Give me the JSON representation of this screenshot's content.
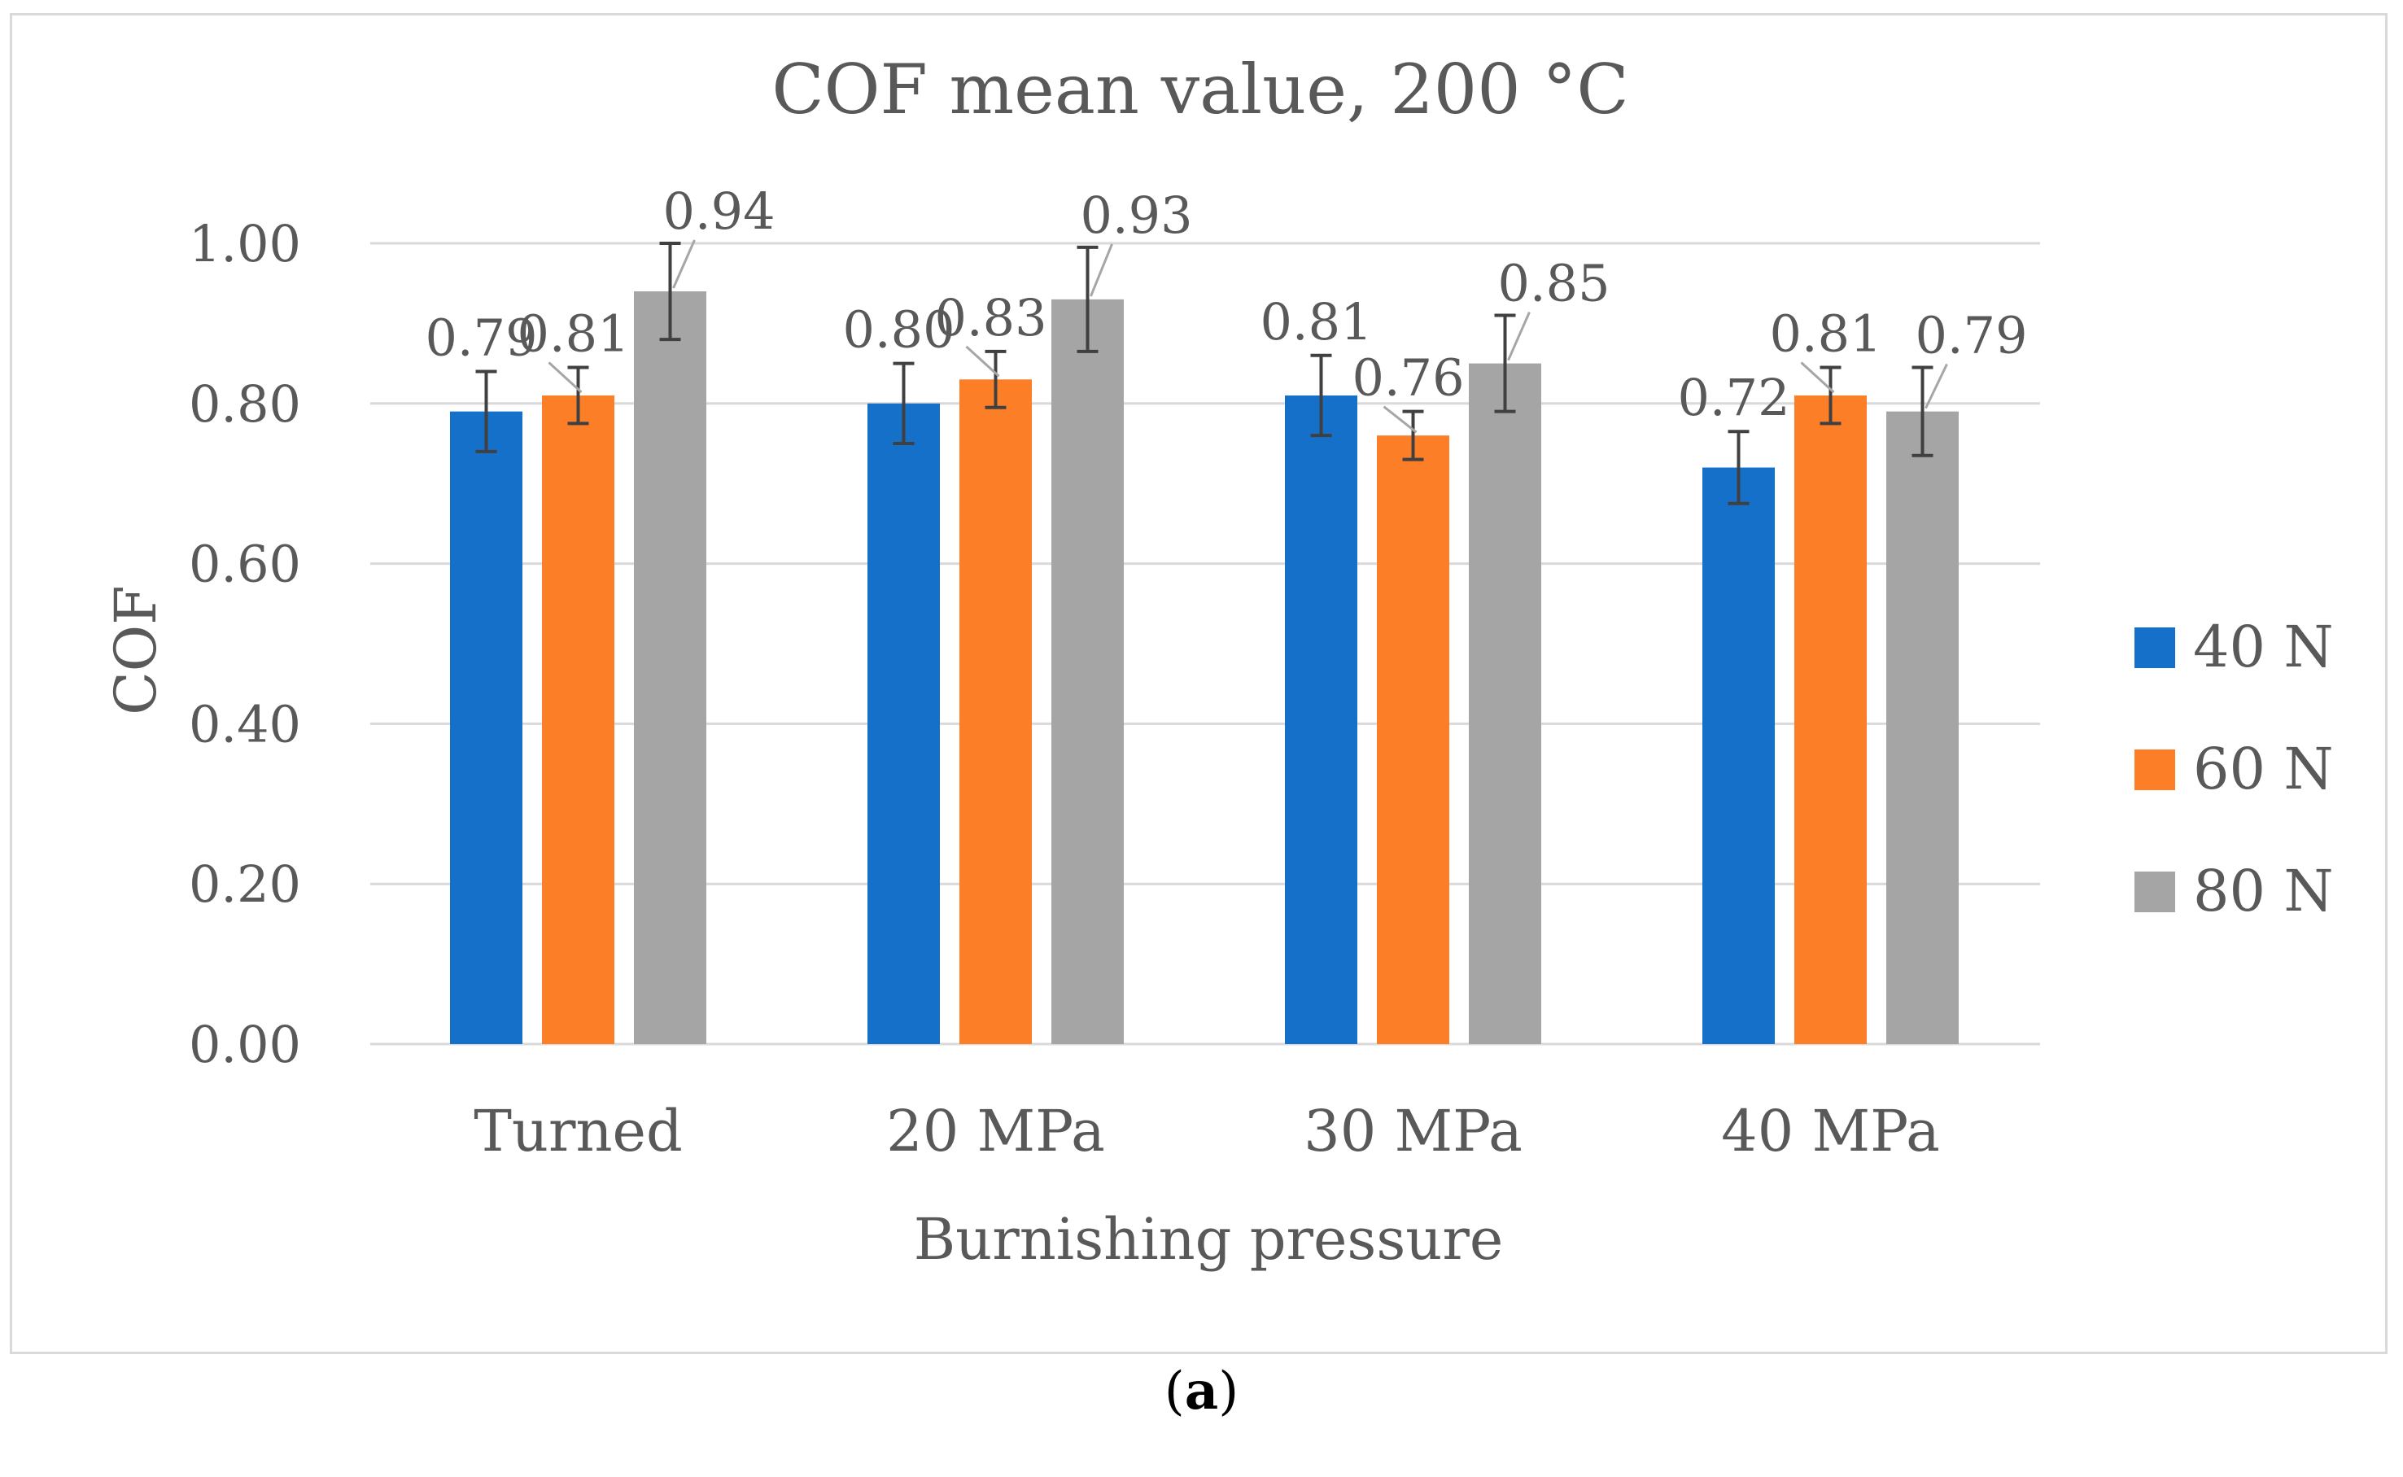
{
  "chart_data": {
    "type": "bar",
    "title": "COF mean value, 200 °C",
    "xlabel": "Burnishing pressure",
    "ylabel": "COF",
    "ylim": [
      0,
      1.0
    ],
    "yticks": [
      "0.00",
      "0.20",
      "0.40",
      "0.60",
      "0.80",
      "1.00"
    ],
    "grid": true,
    "legend_position": "right",
    "categories": [
      "Turned",
      "20 MPa",
      "30 MPa",
      "40 MPa"
    ],
    "series": [
      {
        "name": "40 N",
        "color": "#1570c9",
        "values": [
          0.79,
          0.8,
          0.81,
          0.72
        ],
        "errors": [
          0.05,
          0.05,
          0.05,
          0.045
        ],
        "labels": [
          "0.79",
          "0.80",
          "0.81",
          "0.72"
        ]
      },
      {
        "name": "60 N",
        "color": "#fc7f28",
        "values": [
          0.81,
          0.83,
          0.76,
          0.81
        ],
        "errors": [
          0.035,
          0.035,
          0.03,
          0.035
        ],
        "labels": [
          "0.81",
          "0.83",
          "0.76",
          "0.81"
        ]
      },
      {
        "name": "80 N",
        "color": "#a5a5a5",
        "values": [
          0.94,
          0.93,
          0.85,
          0.79
        ],
        "errors": [
          0.06,
          0.065,
          0.06,
          0.055
        ],
        "labels": [
          "0.94",
          "0.93",
          "0.85",
          "0.79"
        ]
      }
    ]
  },
  "caption": {
    "open": "(",
    "letter": "a",
    "close": ")"
  }
}
